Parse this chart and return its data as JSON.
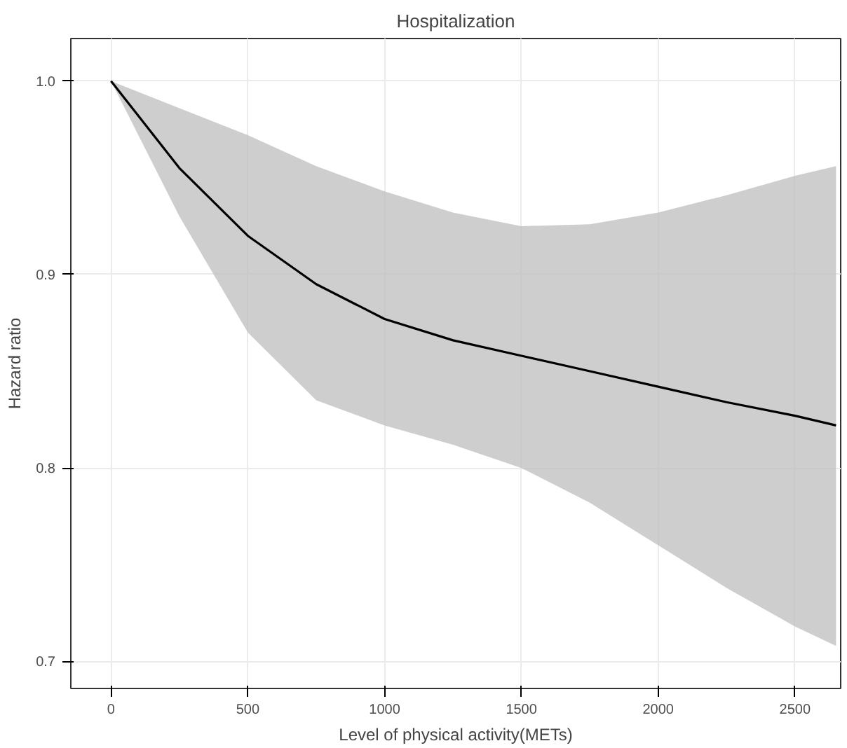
{
  "chart_data": {
    "type": "line",
    "title": "Hospitalization",
    "xlabel": "Level of physical activity(METs)",
    "ylabel": "Hazard ratio",
    "x": [
      0,
      250,
      500,
      750,
      1000,
      1250,
      1500,
      1750,
      2000,
      2250,
      2500,
      2650
    ],
    "series": [
      {
        "color": "#000000",
        "values": [
          1.0,
          0.955,
          0.92,
          0.895,
          0.877,
          0.866,
          0.858,
          0.85,
          0.842,
          0.834,
          0.827,
          0.822
        ],
        "lower": [
          1.0,
          0.93,
          0.87,
          0.835,
          0.822,
          0.812,
          0.8,
          0.782,
          0.76,
          0.738,
          0.718,
          0.708
        ],
        "upper": [
          1.0,
          0.986,
          0.972,
          0.956,
          0.943,
          0.932,
          0.925,
          0.926,
          0.932,
          0.941,
          0.951,
          0.956
        ]
      }
    ],
    "xlim": [
      -147,
      2667
    ],
    "ylim": [
      0.686,
      1.022
    ],
    "xticks": [
      0,
      500,
      1000,
      1500,
      2000,
      2500
    ],
    "yticks": [
      0.7,
      0.8,
      0.9,
      {
        "value": 1,
        "label": "1.0"
      }
    ],
    "grid": true,
    "line_style": "solid"
  }
}
